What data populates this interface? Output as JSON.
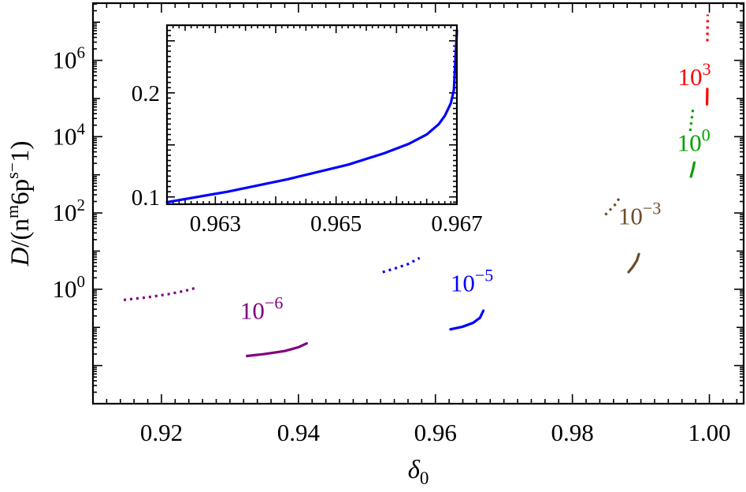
{
  "chart_data": [
    {
      "type": "line",
      "title": "",
      "xlabel": "δ0",
      "ylabel": "D/(nm6ps−1)",
      "xlim": [
        0.91,
        1.005
      ],
      "ylim_log10": [
        -3.0,
        7.5
      ],
      "yscale": "log",
      "grid": false,
      "legend": "none",
      "x_ticks": [
        {
          "value": 0.92,
          "label": "0.92"
        },
        {
          "value": 0.94,
          "label": "0.94"
        },
        {
          "value": 0.96,
          "label": "0.96"
        },
        {
          "value": 0.98,
          "label": "0.98"
        },
        {
          "value": 1.0,
          "label": "1.00"
        }
      ],
      "y_ticks": [
        {
          "log10": 0,
          "base": "10",
          "exp": "0"
        },
        {
          "log10": 2,
          "base": "10",
          "exp": "2"
        },
        {
          "log10": 4,
          "base": "10",
          "exp": "4"
        },
        {
          "log10": 6,
          "base": "10",
          "exp": "6"
        }
      ],
      "series": [
        {
          "name": "10−6",
          "label_base": "10",
          "label_exp": "−6",
          "color": "#800080",
          "label_at": {
            "x": 0.9315,
            "log10y": -0.78
          },
          "solid": {
            "x": [
              0.9325,
              0.935,
              0.938,
              0.94,
              0.9412
            ],
            "log10y": [
              -1.75,
              -1.7,
              -1.62,
              -1.52,
              -1.42
            ]
          },
          "dotted": {
            "x": [
              0.9145,
              0.918,
              0.921,
              0.9235,
              0.9253
            ],
            "log10y": [
              -0.28,
              -0.21,
              -0.13,
              -0.04,
              0.05
            ]
          }
        },
        {
          "name": "10−5",
          "label_base": "10",
          "label_exp": "−5",
          "color": "#0000ff",
          "label_at": {
            "x": 0.9622,
            "log10y": -0.05
          },
          "solid": {
            "x": [
              0.9622,
              0.964,
              0.9655,
              0.9665,
              0.967
            ],
            "log10y": [
              -1.05,
              -0.98,
              -0.88,
              -0.75,
              -0.56
            ]
          },
          "dotted": {
            "x": [
              0.9523,
              0.954,
              0.956,
              0.9577
            ],
            "log10y": [
              0.45,
              0.54,
              0.66,
              0.82
            ]
          }
        },
        {
          "name": "10−3",
          "label_base": "10",
          "label_exp": "−3",
          "color": "#6b4c2a",
          "label_at": {
            "x": 0.9867,
            "log10y": 1.7
          },
          "solid": {
            "x": [
              0.9882,
              0.9888,
              0.9894,
              0.9897
            ],
            "log10y": [
              0.45,
              0.58,
              0.75,
              0.92
            ]
          },
          "dotted": {
            "x": [
              0.9848,
              0.9856,
              0.9864,
              0.9868
            ],
            "log10y": [
              1.95,
              2.1,
              2.25,
              2.38
            ]
          }
        },
        {
          "name": "100",
          "label_base": "10",
          "label_exp": "0",
          "color": "#00a000",
          "label_at": {
            "x": 0.9953,
            "log10y": 3.62
          },
          "solid": {
            "x": [
              0.9973,
              0.9976,
              0.9978
            ],
            "log10y": [
              2.95,
              3.15,
              3.32
            ]
          },
          "dotted": {
            "x": [
              0.9972,
              0.9976
            ],
            "log10y": [
              4.15,
              4.72
            ]
          }
        },
        {
          "name": "103",
          "label_base": "10",
          "label_exp": "3",
          "color": "#ff0000",
          "label_at": {
            "x": 0.9954,
            "log10y": 5.35
          },
          "solid": {
            "x": [
              0.99965,
              0.9997
            ],
            "log10y": [
              4.85,
              5.25
            ]
          },
          "dotted": {
            "x": [
              0.9997,
              0.99975
            ],
            "log10y": [
              6.5,
              7.2
            ]
          }
        }
      ]
    },
    {
      "type": "line",
      "title": "",
      "inset": true,
      "xlabel": "",
      "ylabel": "",
      "xlim": [
        0.9622,
        0.967
      ],
      "ylim": [
        0.093,
        0.265
      ],
      "grid": false,
      "x_ticks": [
        {
          "value": 0.963,
          "label": "0.963"
        },
        {
          "value": 0.965,
          "label": "0.965"
        },
        {
          "value": 0.967,
          "label": "0.967"
        }
      ],
      "y_ticks": [
        {
          "value": 0.1,
          "label": "0.1"
        },
        {
          "value": 0.2,
          "label": "0.2"
        }
      ],
      "series": [
        {
          "color": "#0000ff",
          "x": [
            0.9622,
            0.9632,
            0.9642,
            0.9652,
            0.9658,
            0.9662,
            0.9665,
            0.9667,
            0.9668,
            0.9669,
            0.96695,
            0.967
          ],
          "y": [
            0.095,
            0.105,
            0.117,
            0.131,
            0.142,
            0.151,
            0.16,
            0.17,
            0.178,
            0.19,
            0.203,
            0.26
          ]
        }
      ]
    }
  ]
}
